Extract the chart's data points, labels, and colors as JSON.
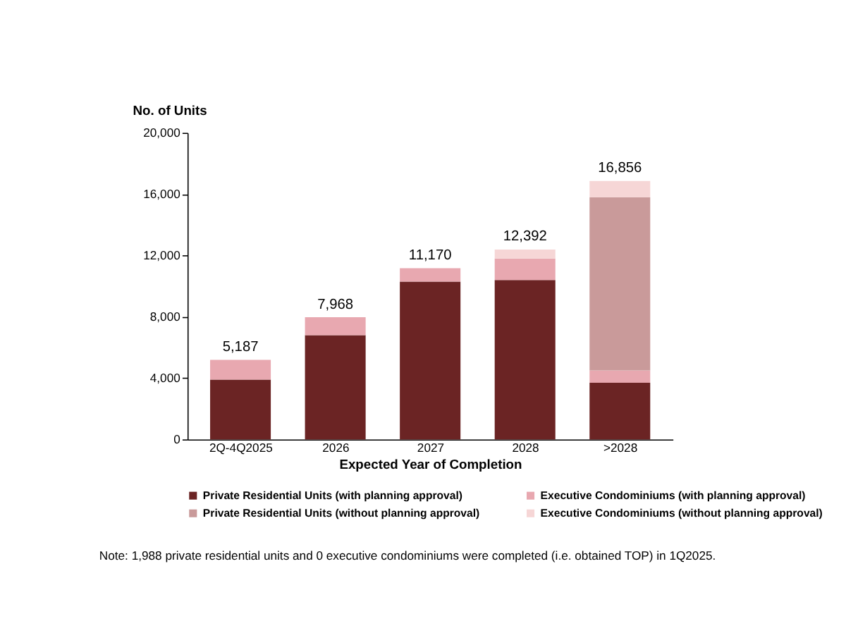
{
  "chart_data": {
    "type": "bar",
    "stacked": true,
    "xlabel": "Expected Year of Completion",
    "ylabel": "No. of Units",
    "categories": [
      "2Q-4Q2025",
      "2026",
      "2027",
      "2028",
      ">2028"
    ],
    "series": [
      {
        "name": "Private Residential Units (with planning approval)",
        "color": "#6b2424",
        "values": [
          3900,
          6800,
          10300,
          10400,
          3700
        ]
      },
      {
        "name": "Executive Condominiums (with planning approval)",
        "color": "#e8a8b0",
        "values": [
          1287,
          1168,
          870,
          1400,
          800
        ]
      },
      {
        "name": "Private Residential Units (without planning approval)",
        "color": "#c99a9a",
        "values": [
          0,
          0,
          0,
          0,
          11300
        ]
      },
      {
        "name": "Executive Condominiums (without planning approval)",
        "color": "#f6d6d6",
        "values": [
          0,
          0,
          0,
          592,
          1056
        ]
      }
    ],
    "totals": [
      "5,187",
      "7,968",
      "11,170",
      "12,392",
      "16,856"
    ],
    "ylim": [
      0,
      20000
    ],
    "yticks": [
      0,
      {
        "value": 4000,
        "label": "4,000"
      },
      {
        "value": 8000,
        "label": "8,000"
      },
      {
        "value": 12000,
        "label": "12,000"
      },
      {
        "value": 16000,
        "label": "16,000"
      },
      {
        "value": 20000,
        "label": "20,000"
      }
    ],
    "grid": false,
    "legend": "bottom",
    "annotations": [
      "Note: 1,988 private residential units and 0 executive condominiums were completed (i.e. obtained TOP) in 1Q2025."
    ]
  }
}
